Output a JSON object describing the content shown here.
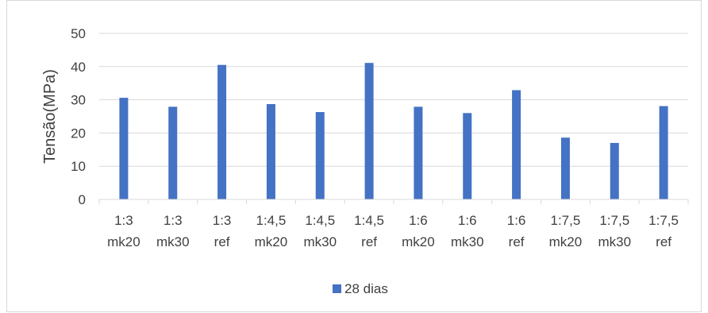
{
  "chart_data": {
    "type": "bar",
    "title": "",
    "xlabel": "",
    "ylabel": "Tensão(MPa)",
    "ylim": [
      0,
      50
    ],
    "yticks": [
      0,
      10,
      20,
      30,
      40,
      50
    ],
    "grid": true,
    "legend_position": "bottom",
    "categories": [
      [
        "1:3",
        "mk20"
      ],
      [
        "1:3",
        "mk30"
      ],
      [
        "1:3",
        "ref"
      ],
      [
        "1:4,5",
        "mk20"
      ],
      [
        "1:4,5",
        "mk30"
      ],
      [
        "1:4,5",
        "ref"
      ],
      [
        "1:6",
        "mk20"
      ],
      [
        "1:6",
        "mk30"
      ],
      [
        "1:6",
        "ref"
      ],
      [
        "1:7,5",
        "mk20"
      ],
      [
        "1:7,5",
        "mk30"
      ],
      [
        "1:7,5",
        "ref"
      ]
    ],
    "series": [
      {
        "name": "28 dias",
        "color": "#4472c4",
        "values": [
          30.6,
          27.9,
          40.5,
          28.7,
          26.3,
          41.1,
          27.9,
          26.0,
          32.9,
          18.6,
          17.0,
          28.1
        ]
      }
    ]
  }
}
